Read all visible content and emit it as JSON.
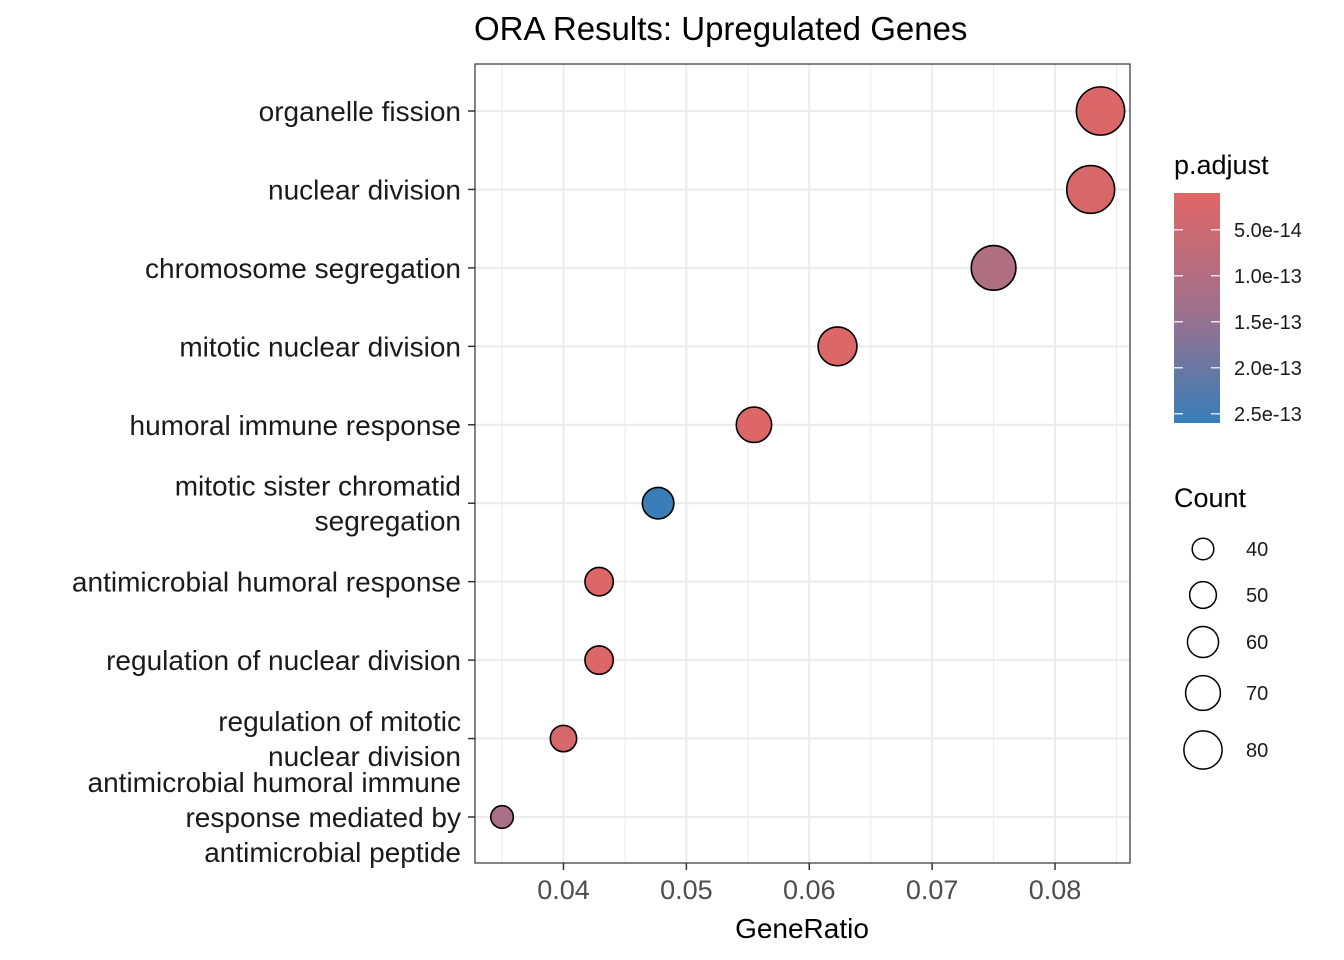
{
  "chart_data": {
    "type": "scatter",
    "title": "ORA Results: Upregulated Genes",
    "xlabel": "GeneRatio",
    "ylabel": "",
    "xlim": [
      0.0328,
      0.0861
    ],
    "x_ticks": [
      0.04,
      0.05,
      0.06,
      0.07,
      0.08
    ],
    "x_tick_labels": [
      "0.04",
      "0.05",
      "0.06",
      "0.07",
      "0.08"
    ],
    "grid": true,
    "categories": [
      [
        "organelle fission"
      ],
      [
        "nuclear division"
      ],
      [
        "chromosome segregation"
      ],
      [
        "mitotic nuclear division"
      ],
      [
        "humoral immune response"
      ],
      [
        "mitotic sister chromatid",
        "segregation"
      ],
      [
        "antimicrobial humoral response"
      ],
      [
        "regulation of nuclear division"
      ],
      [
        "regulation of mitotic",
        "nuclear division"
      ],
      [
        "antimicrobial humoral immune",
        "response mediated by",
        "antimicrobial peptide"
      ]
    ],
    "points": [
      {
        "x": 0.0837,
        "p_adjust": 2e-14,
        "count": 84
      },
      {
        "x": 0.0829,
        "p_adjust": 2.5e-14,
        "count": 83
      },
      {
        "x": 0.075,
        "p_adjust": 1.05e-13,
        "count": 75
      },
      {
        "x": 0.0623,
        "p_adjust": 2e-14,
        "count": 62
      },
      {
        "x": 0.0555,
        "p_adjust": 1.5e-14,
        "count": 55
      },
      {
        "x": 0.0477,
        "p_adjust": 2.55e-13,
        "count": 48
      },
      {
        "x": 0.0429,
        "p_adjust": 2e-14,
        "count": 43
      },
      {
        "x": 0.0429,
        "p_adjust": 2e-14,
        "count": 43
      },
      {
        "x": 0.04,
        "p_adjust": 3e-14,
        "count": 40
      },
      {
        "x": 0.035,
        "p_adjust": 1.2e-13,
        "count": 35
      }
    ],
    "color_legend": {
      "title": "p.adjust",
      "range": [
        1e-14,
        2.6e-13
      ],
      "ticks": [
        5e-14,
        1e-13,
        1.5e-13,
        2e-13,
        2.5e-13
      ],
      "tick_labels": [
        "5.0e-14",
        "1.0e-13",
        "1.5e-13",
        "2.0e-13",
        "2.5e-13"
      ],
      "low_color": "#e06666",
      "mid_color": "#a1708b",
      "high_color": "#377eb8"
    },
    "size_legend": {
      "title": "Count",
      "values": [
        40,
        50,
        60,
        70,
        80
      ],
      "labels": [
        "40",
        "50",
        "60",
        "70",
        "80"
      ]
    },
    "legend_position": "right"
  }
}
